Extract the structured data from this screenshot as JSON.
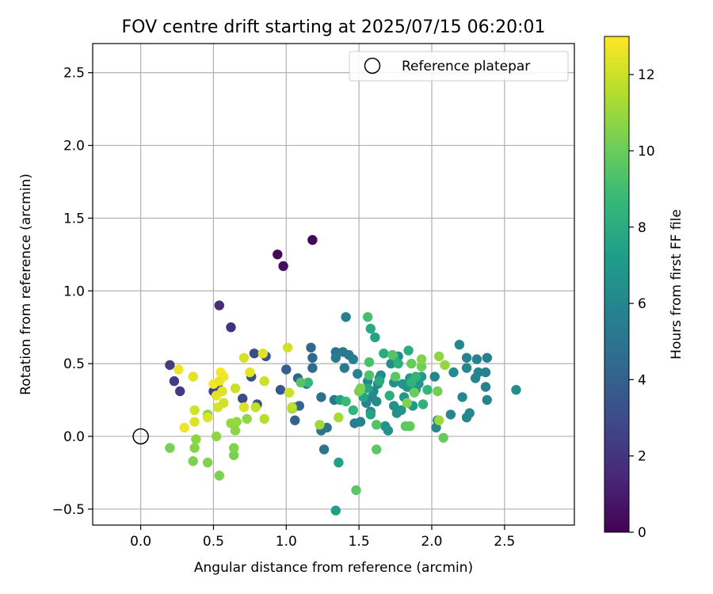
{
  "chart_data": {
    "type": "scatter",
    "title": "FOV centre drift starting at 2025/07/15 06:20:01",
    "xlabel": "Angular distance from reference (arcmin)",
    "ylabel": "Rotation from reference (arcmin)",
    "xlim": [
      -0.33,
      2.98
    ],
    "ylim": [
      -0.61,
      2.7
    ],
    "xticks": [
      0.0,
      0.5,
      1.0,
      1.5,
      2.0,
      2.5
    ],
    "xtick_labels": [
      "0.0",
      "0.5",
      "1.0",
      "1.5",
      "2.0",
      "2.5"
    ],
    "yticks": [
      -0.5,
      0.0,
      0.5,
      1.0,
      1.5,
      2.0,
      2.5
    ],
    "ytick_labels": [
      "−0.5",
      "0.0",
      "0.5",
      "1.0",
      "1.5",
      "2.0",
      "2.5"
    ],
    "grid": true,
    "legend": {
      "position": "top-right",
      "entries": [
        {
          "label": "Reference platepar",
          "marker": "open-circle"
        }
      ]
    },
    "reference_point": {
      "x": 0.0,
      "y": 0.0
    },
    "colorbar": {
      "label": "Hours from first FF file",
      "colormap": "viridis",
      "range": [
        0,
        13
      ],
      "ticks": [
        0,
        2,
        4,
        6,
        8,
        10,
        12
      ],
      "tick_labels": [
        "0",
        "2",
        "4",
        "6",
        "8",
        "10",
        "12"
      ]
    },
    "colormap_stops": [
      "#440154",
      "#482878",
      "#3e4989",
      "#31688e",
      "#26828e",
      "#1f9e89",
      "#35b779",
      "#6ece58",
      "#b5de2b",
      "#fde725"
    ],
    "series": [
      {
        "points": [
          {
            "x": 0.94,
            "y": 1.25,
            "h": 0.3
          },
          {
            "x": 0.98,
            "y": 1.17,
            "h": 0.5
          },
          {
            "x": 1.18,
            "y": 1.35,
            "h": 0.2
          },
          {
            "x": 0.54,
            "y": 0.9,
            "h": 1.7
          },
          {
            "x": 0.62,
            "y": 0.75,
            "h": 1.9
          },
          {
            "x": 0.2,
            "y": 0.49,
            "h": 2.4
          },
          {
            "x": 0.23,
            "y": 0.38,
            "h": 2.5
          },
          {
            "x": 0.27,
            "y": 0.31,
            "h": 2.3
          },
          {
            "x": 0.5,
            "y": 0.31,
            "h": 2.6
          },
          {
            "x": 0.53,
            "y": 0.36,
            "h": 2.7
          },
          {
            "x": 0.7,
            "y": 0.26,
            "h": 3.0
          },
          {
            "x": 0.76,
            "y": 0.41,
            "h": 3.2
          },
          {
            "x": 0.78,
            "y": 0.57,
            "h": 3.1
          },
          {
            "x": 0.8,
            "y": 0.22,
            "h": 3.4
          },
          {
            "x": 0.86,
            "y": 0.55,
            "h": 3.3
          },
          {
            "x": 0.96,
            "y": 0.32,
            "h": 3.6
          },
          {
            "x": 1.0,
            "y": 0.46,
            "h": 3.8
          },
          {
            "x": 1.05,
            "y": 0.2,
            "h": 4.0
          },
          {
            "x": 1.06,
            "y": 0.11,
            "h": 4.1
          },
          {
            "x": 1.08,
            "y": 0.4,
            "h": 4.2
          },
          {
            "x": 1.09,
            "y": 0.21,
            "h": 4.3
          },
          {
            "x": 1.17,
            "y": 0.61,
            "h": 4.4
          },
          {
            "x": 1.18,
            "y": 0.54,
            "h": 4.5
          },
          {
            "x": 1.18,
            "y": 0.47,
            "h": 4.6
          },
          {
            "x": 1.14,
            "y": 0.36,
            "h": 4.7
          },
          {
            "x": 1.24,
            "y": 0.27,
            "h": 4.8
          },
          {
            "x": 1.24,
            "y": 0.04,
            "h": 4.9
          },
          {
            "x": 1.26,
            "y": -0.09,
            "h": 5.0
          },
          {
            "x": 1.28,
            "y": 0.06,
            "h": 5.1
          },
          {
            "x": 1.33,
            "y": 0.25,
            "h": 5.2
          },
          {
            "x": 1.34,
            "y": 0.58,
            "h": 5.0
          },
          {
            "x": 1.34,
            "y": 0.54,
            "h": 5.3
          },
          {
            "x": 1.39,
            "y": 0.58,
            "h": 5.2
          },
          {
            "x": 1.4,
            "y": 0.47,
            "h": 5.4
          },
          {
            "x": 1.41,
            "y": 0.82,
            "h": 5.6
          },
          {
            "x": 1.43,
            "y": 0.56,
            "h": 5.3
          },
          {
            "x": 1.46,
            "y": 0.53,
            "h": 5.5
          },
          {
            "x": 1.47,
            "y": 0.09,
            "h": 5.6
          },
          {
            "x": 1.49,
            "y": 0.43,
            "h": 5.7
          },
          {
            "x": 1.51,
            "y": 0.1,
            "h": 5.8
          },
          {
            "x": 1.55,
            "y": 0.23,
            "h": 5.9
          },
          {
            "x": 1.56,
            "y": 0.38,
            "h": 6.0
          },
          {
            "x": 1.58,
            "y": 0.17,
            "h": 6.1
          },
          {
            "x": 1.59,
            "y": 0.27,
            "h": 6.0
          },
          {
            "x": 1.6,
            "y": 0.31,
            "h": 6.2
          },
          {
            "x": 1.62,
            "y": 0.24,
            "h": 6.3
          },
          {
            "x": 1.63,
            "y": 0.36,
            "h": 6.1
          },
          {
            "x": 1.64,
            "y": 0.4,
            "h": 6.4
          },
          {
            "x": 1.65,
            "y": 0.42,
            "h": 6.2
          },
          {
            "x": 1.68,
            "y": 0.07,
            "h": 6.5
          },
          {
            "x": 1.7,
            "y": 0.04,
            "h": 6.6
          },
          {
            "x": 1.72,
            "y": 0.5,
            "h": 6.3
          },
          {
            "x": 1.74,
            "y": 0.37,
            "h": 6.4
          },
          {
            "x": 1.74,
            "y": 0.21,
            "h": 6.5
          },
          {
            "x": 1.76,
            "y": 0.16,
            "h": 6.6
          },
          {
            "x": 1.77,
            "y": 0.55,
            "h": 6.2
          },
          {
            "x": 1.79,
            "y": 0.18,
            "h": 6.7
          },
          {
            "x": 1.8,
            "y": 0.36,
            "h": 6.8
          },
          {
            "x": 1.81,
            "y": 0.27,
            "h": 6.9
          },
          {
            "x": 1.83,
            "y": 0.34,
            "h": 6.7
          },
          {
            "x": 1.84,
            "y": 0.34,
            "h": 6.8
          },
          {
            "x": 1.85,
            "y": 0.4,
            "h": 6.9
          },
          {
            "x": 1.87,
            "y": 0.21,
            "h": 7.0
          },
          {
            "x": 1.89,
            "y": 0.32,
            "h": 7.1
          },
          {
            "x": 1.91,
            "y": 0.36,
            "h": 6.9
          },
          {
            "x": 1.93,
            "y": 0.41,
            "h": 7.0
          },
          {
            "x": 2.02,
            "y": 0.41,
            "h": 6.0
          },
          {
            "x": 2.03,
            "y": 0.06,
            "h": 6.2
          },
          {
            "x": 2.04,
            "y": 0.11,
            "h": 6.1
          },
          {
            "x": 2.13,
            "y": 0.15,
            "h": 6.0
          },
          {
            "x": 2.15,
            "y": 0.44,
            "h": 6.3
          },
          {
            "x": 2.19,
            "y": 0.63,
            "h": 6.1
          },
          {
            "x": 2.21,
            "y": 0.27,
            "h": 6.2
          },
          {
            "x": 2.24,
            "y": 0.54,
            "h": 5.8
          },
          {
            "x": 2.24,
            "y": 0.13,
            "h": 6.0
          },
          {
            "x": 2.24,
            "y": 0.47,
            "h": 5.9
          },
          {
            "x": 2.26,
            "y": 0.16,
            "h": 6.1
          },
          {
            "x": 2.3,
            "y": 0.4,
            "h": 6.0
          },
          {
            "x": 2.31,
            "y": 0.53,
            "h": 5.8
          },
          {
            "x": 2.32,
            "y": 0.44,
            "h": 5.9
          },
          {
            "x": 2.37,
            "y": 0.44,
            "h": 5.7
          },
          {
            "x": 2.37,
            "y": 0.34,
            "h": 5.8
          },
          {
            "x": 2.38,
            "y": 0.54,
            "h": 5.6
          },
          {
            "x": 2.38,
            "y": 0.25,
            "h": 5.9
          },
          {
            "x": 2.58,
            "y": 0.32,
            "h": 6.3
          },
          {
            "x": 1.34,
            "y": -0.51,
            "h": 7.3
          },
          {
            "x": 1.36,
            "y": -0.18,
            "h": 7.4
          },
          {
            "x": 1.37,
            "y": 0.25,
            "h": 7.5
          },
          {
            "x": 1.53,
            "y": 0.27,
            "h": 7.6
          },
          {
            "x": 1.56,
            "y": 0.33,
            "h": 7.7
          },
          {
            "x": 1.58,
            "y": 0.74,
            "h": 7.8
          },
          {
            "x": 1.58,
            "y": 0.15,
            "h": 7.6
          },
          {
            "x": 1.61,
            "y": 0.68,
            "h": 7.5
          },
          {
            "x": 1.64,
            "y": 0.38,
            "h": 7.9
          },
          {
            "x": 1.67,
            "y": 0.57,
            "h": 8.0
          },
          {
            "x": 1.71,
            "y": 0.28,
            "h": 8.1
          },
          {
            "x": 1.74,
            "y": 0.55,
            "h": 8.2
          },
          {
            "x": 1.77,
            "y": 0.5,
            "h": 8.3
          },
          {
            "x": 1.84,
            "y": 0.59,
            "h": 8.0
          },
          {
            "x": 1.86,
            "y": 0.37,
            "h": 8.4
          },
          {
            "x": 1.89,
            "y": 0.41,
            "h": 8.5
          },
          {
            "x": 1.94,
            "y": 0.22,
            "h": 8.3
          },
          {
            "x": 1.97,
            "y": 0.32,
            "h": 8.6
          },
          {
            "x": 1.15,
            "y": 0.37,
            "h": 8.7
          },
          {
            "x": 1.41,
            "y": 0.24,
            "h": 8.8
          },
          {
            "x": 1.46,
            "y": 0.18,
            "h": 8.6
          },
          {
            "x": 1.56,
            "y": 0.82,
            "h": 9.1
          },
          {
            "x": 1.57,
            "y": 0.51,
            "h": 9.2
          },
          {
            "x": 1.57,
            "y": 0.42,
            "h": 9.3
          },
          {
            "x": 1.62,
            "y": 0.08,
            "h": 9.4
          },
          {
            "x": 1.73,
            "y": 0.56,
            "h": 9.5
          },
          {
            "x": 1.75,
            "y": 0.41,
            "h": 9.6
          },
          {
            "x": 1.82,
            "y": 0.07,
            "h": 9.7
          },
          {
            "x": 1.85,
            "y": 0.07,
            "h": 9.8
          },
          {
            "x": 1.86,
            "y": 0.5,
            "h": 9.9
          },
          {
            "x": 1.88,
            "y": 0.3,
            "h": 10.0
          },
          {
            "x": 1.93,
            "y": 0.48,
            "h": 10.1
          },
          {
            "x": 2.04,
            "y": 0.31,
            "h": 10.2
          },
          {
            "x": 1.1,
            "y": 0.37,
            "h": 9.5
          },
          {
            "x": 1.48,
            "y": -0.37,
            "h": 9.6
          },
          {
            "x": 1.62,
            "y": -0.09,
            "h": 9.7
          },
          {
            "x": 2.08,
            "y": -0.01,
            "h": 9.9
          },
          {
            "x": 1.5,
            "y": 0.31,
            "h": 10.3
          },
          {
            "x": 1.51,
            "y": 0.33,
            "h": 10.4
          },
          {
            "x": 1.83,
            "y": 0.23,
            "h": 10.5
          },
          {
            "x": 1.93,
            "y": 0.53,
            "h": 10.6
          },
          {
            "x": 2.05,
            "y": 0.55,
            "h": 10.8
          },
          {
            "x": 2.09,
            "y": 0.49,
            "h": 10.9
          },
          {
            "x": 2.05,
            "y": 0.11,
            "h": 11.0
          },
          {
            "x": 0.2,
            "y": -0.08,
            "h": 10.3
          },
          {
            "x": 0.36,
            "y": -0.17,
            "h": 10.4
          },
          {
            "x": 0.37,
            "y": -0.08,
            "h": 10.6
          },
          {
            "x": 0.38,
            "y": -0.02,
            "h": 10.7
          },
          {
            "x": 0.46,
            "y": -0.18,
            "h": 10.5
          },
          {
            "x": 0.52,
            "y": 0.0,
            "h": 10.8
          },
          {
            "x": 0.54,
            "y": -0.27,
            "h": 10.4
          },
          {
            "x": 0.62,
            "y": 0.09,
            "h": 10.9
          },
          {
            "x": 0.64,
            "y": -0.13,
            "h": 10.3
          },
          {
            "x": 0.64,
            "y": -0.08,
            "h": 10.5
          },
          {
            "x": 0.65,
            "y": 0.04,
            "h": 10.7
          },
          {
            "x": 0.66,
            "y": 0.1,
            "h": 10.9
          },
          {
            "x": 0.73,
            "y": 0.12,
            "h": 10.8
          },
          {
            "x": 0.46,
            "y": 0.15,
            "h": 10.6
          },
          {
            "x": 1.04,
            "y": 0.19,
            "h": 11.0
          },
          {
            "x": 1.23,
            "y": 0.08,
            "h": 11.1
          },
          {
            "x": 1.36,
            "y": 0.13,
            "h": 11.2
          },
          {
            "x": 0.26,
            "y": 0.46,
            "h": 12.6
          },
          {
            "x": 0.3,
            "y": 0.06,
            "h": 12.7
          },
          {
            "x": 0.36,
            "y": 0.41,
            "h": 12.5
          },
          {
            "x": 0.37,
            "y": 0.1,
            "h": 12.3
          },
          {
            "x": 0.37,
            "y": 0.18,
            "h": 12.1
          },
          {
            "x": 0.46,
            "y": 0.13,
            "h": 12.4
          },
          {
            "x": 0.5,
            "y": 0.36,
            "h": 12.8
          },
          {
            "x": 0.52,
            "y": 0.28,
            "h": 12.5
          },
          {
            "x": 0.53,
            "y": 0.2,
            "h": 12.2
          },
          {
            "x": 0.54,
            "y": 0.38,
            "h": 12.6
          },
          {
            "x": 0.55,
            "y": 0.44,
            "h": 12.9
          },
          {
            "x": 0.56,
            "y": 0.31,
            "h": 12.4
          },
          {
            "x": 0.57,
            "y": 0.23,
            "h": 12.1
          },
          {
            "x": 0.57,
            "y": 0.41,
            "h": 12.7
          },
          {
            "x": 0.65,
            "y": 0.33,
            "h": 12.0
          },
          {
            "x": 0.71,
            "y": 0.2,
            "h": 12.3
          },
          {
            "x": 0.71,
            "y": 0.54,
            "h": 12.2
          },
          {
            "x": 0.75,
            "y": 0.44,
            "h": 12.5
          },
          {
            "x": 0.79,
            "y": 0.2,
            "h": 11.8
          },
          {
            "x": 0.84,
            "y": 0.57,
            "h": 12.4
          },
          {
            "x": 0.85,
            "y": 0.38,
            "h": 12.0
          },
          {
            "x": 0.85,
            "y": 0.12,
            "h": 11.6
          },
          {
            "x": 1.01,
            "y": 0.61,
            "h": 12.1
          },
          {
            "x": 1.02,
            "y": 0.3,
            "h": 12.0
          },
          {
            "x": 1.04,
            "y": 0.2,
            "h": 11.7
          }
        ]
      }
    ]
  }
}
